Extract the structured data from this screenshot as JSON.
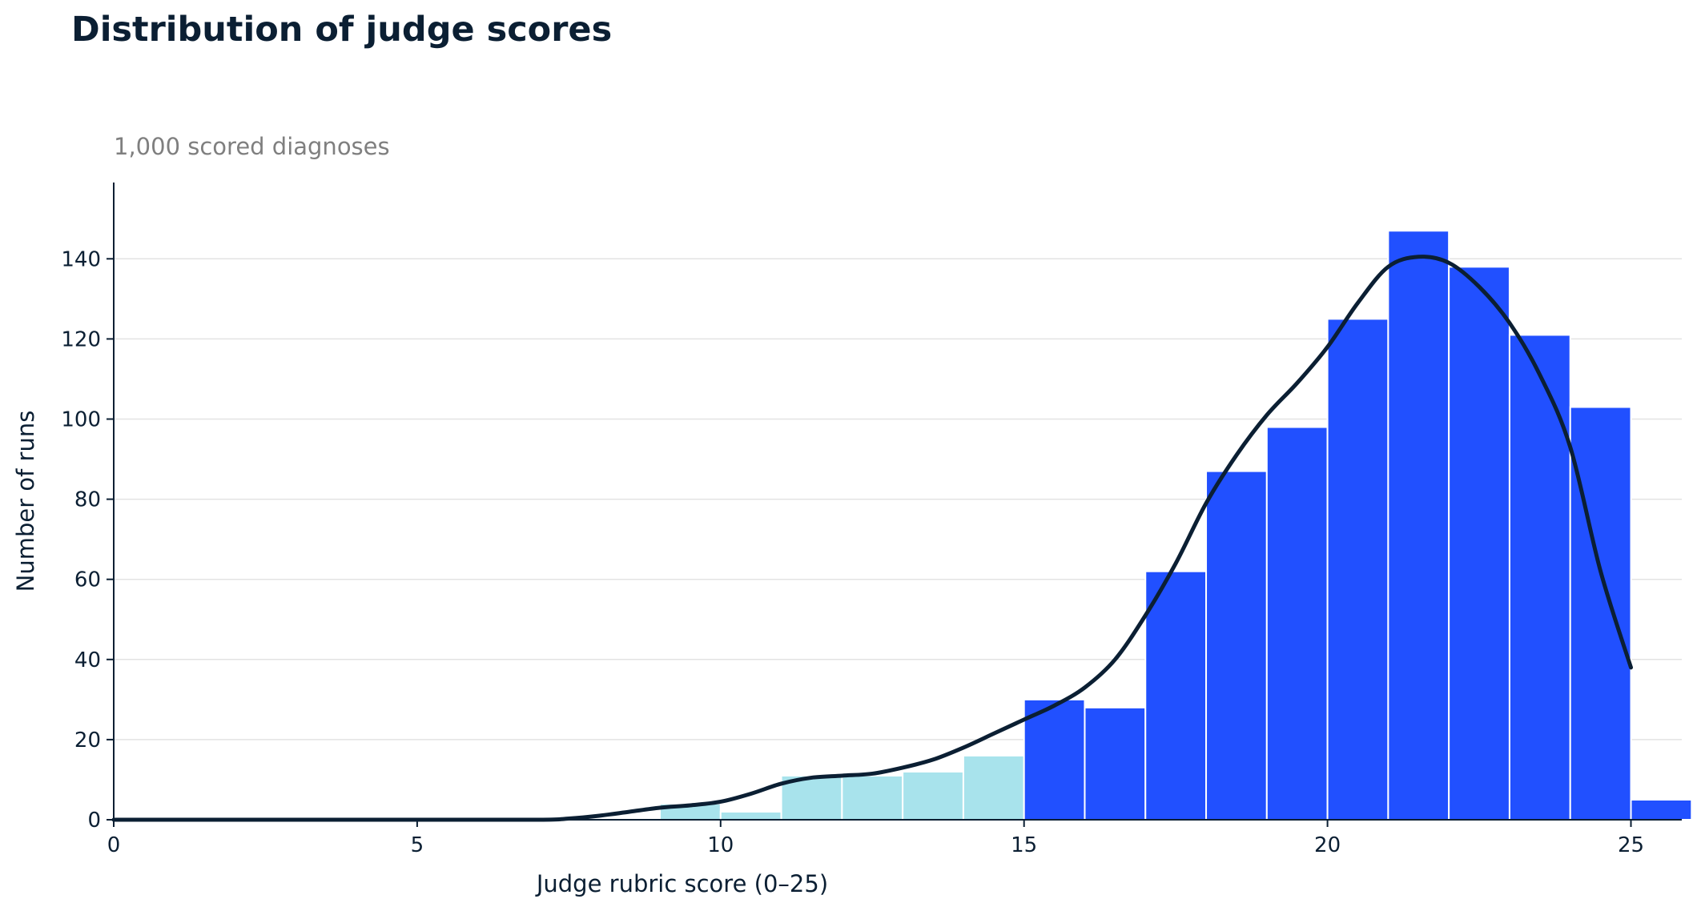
{
  "chart_data": {
    "type": "bar",
    "title": "Distribution of judge scores",
    "subtitle": "1,000 scored diagnoses",
    "xlabel": "Judge rubric score (0–25)",
    "ylabel": "Number of runs",
    "xlim": [
      0,
      25.8
    ],
    "ylim": [
      0,
      159
    ],
    "x_ticks": [
      0,
      5,
      10,
      15,
      20,
      25
    ],
    "y_ticks": [
      0,
      20,
      40,
      60,
      80,
      100,
      120,
      140
    ],
    "grid": true,
    "bin_width": 1,
    "bins": [
      {
        "start": 9,
        "count": 4,
        "group": "below-15"
      },
      {
        "start": 10,
        "count": 2,
        "group": "below-15"
      },
      {
        "start": 11,
        "count": 11,
        "group": "below-15"
      },
      {
        "start": 12,
        "count": 11,
        "group": "below-15"
      },
      {
        "start": 13,
        "count": 12,
        "group": "below-15"
      },
      {
        "start": 14,
        "count": 16,
        "group": "below-15"
      },
      {
        "start": 15,
        "count": 30,
        "group": "15-plus"
      },
      {
        "start": 16,
        "count": 28,
        "group": "15-plus"
      },
      {
        "start": 17,
        "count": 62,
        "group": "15-plus"
      },
      {
        "start": 18,
        "count": 87,
        "group": "15-plus"
      },
      {
        "start": 19,
        "count": 98,
        "group": "15-plus"
      },
      {
        "start": 20,
        "count": 125,
        "group": "15-plus"
      },
      {
        "start": 21,
        "count": 147,
        "group": "15-plus"
      },
      {
        "start": 22,
        "count": 138,
        "group": "15-plus"
      },
      {
        "start": 23,
        "count": 121,
        "group": "15-plus"
      },
      {
        "start": 24,
        "count": 103,
        "group": "15-plus"
      },
      {
        "start": 25,
        "count": 5,
        "group": "15-plus"
      }
    ],
    "density_curve": {
      "x": [
        0,
        5,
        7,
        7.5,
        8,
        8.5,
        9,
        9.5,
        10,
        10.5,
        11,
        11.5,
        12,
        12.5,
        13,
        13.5,
        14,
        14.5,
        15,
        15.5,
        16,
        16.5,
        17,
        17.5,
        18,
        18.5,
        19,
        19.5,
        20,
        20.5,
        21,
        21.5,
        22,
        22.5,
        23,
        23.5,
        24,
        24.5,
        25
      ],
      "y": [
        0,
        0,
        0,
        0.3,
        1,
        2,
        3,
        3.6,
        4.5,
        6.5,
        9,
        10.5,
        11,
        11.5,
        13,
        15,
        18,
        21.5,
        25,
        28.5,
        33,
        40,
        51,
        64,
        79,
        91,
        101,
        109,
        118,
        129,
        138,
        140.5,
        139,
        133,
        124,
        111,
        93,
        62,
        38
      ]
    },
    "colors": {
      "below-15": "#a8e3ec",
      "15-plus": "#2150ff",
      "curve": "#0b1f33",
      "grid": "#e3e3e3",
      "axis": "#0b1f33"
    }
  }
}
